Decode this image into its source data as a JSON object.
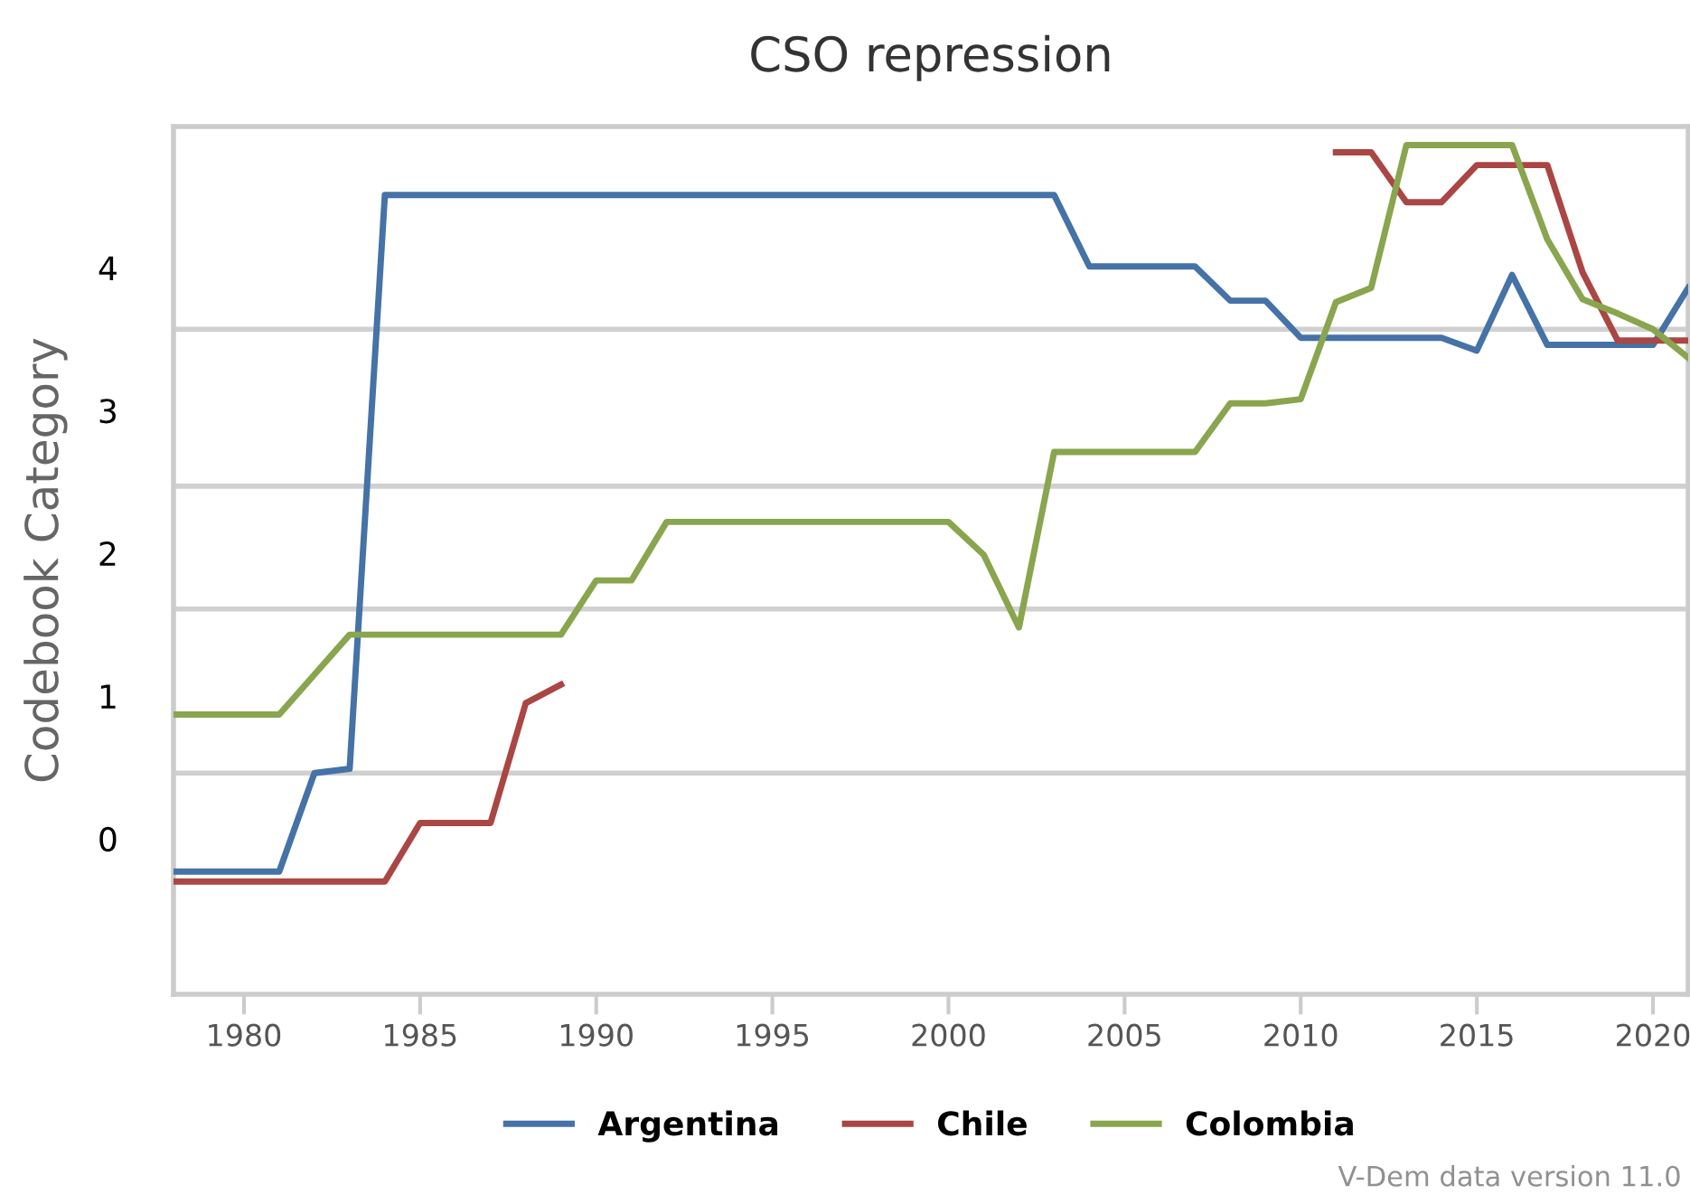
{
  "chart_data": {
    "type": "line",
    "title": "CSO repression",
    "ylabel": "Codebook Category",
    "x": [
      1978,
      1979,
      1980,
      1981,
      1982,
      1983,
      1984,
      1985,
      1986,
      1987,
      1988,
      1989,
      1990,
      1991,
      1992,
      1993,
      1994,
      1995,
      1996,
      1997,
      1998,
      1999,
      2000,
      2001,
      2002,
      2003,
      2004,
      2005,
      2006,
      2007,
      2008,
      2009,
      2010,
      2011,
      2012,
      2013,
      2014,
      2015,
      2016,
      2017,
      2018,
      2019,
      2020,
      2021
    ],
    "series": [
      {
        "name": "Argentina",
        "color": "#4572a7",
        "values": [
          -0.23,
          -0.23,
          -0.23,
          -0.23,
          0.46,
          0.49,
          4.51,
          4.51,
          4.51,
          4.51,
          4.51,
          4.51,
          4.51,
          4.51,
          4.51,
          4.51,
          4.51,
          4.51,
          4.51,
          4.51,
          4.51,
          4.51,
          4.51,
          4.51,
          4.51,
          4.51,
          4.01,
          4.01,
          4.01,
          4.01,
          3.77,
          3.77,
          3.51,
          3.51,
          3.51,
          3.51,
          3.51,
          3.42,
          3.95,
          3.46,
          3.46,
          3.46,
          3.46,
          3.86
        ]
      },
      {
        "name": "Chile",
        "color": "#aa4643",
        "values": [
          -0.3,
          -0.3,
          -0.3,
          -0.3,
          -0.3,
          -0.3,
          -0.3,
          0.11,
          0.11,
          0.11,
          0.95,
          1.08,
          null,
          null,
          null,
          null,
          null,
          null,
          null,
          null,
          null,
          null,
          null,
          null,
          null,
          null,
          null,
          null,
          null,
          null,
          null,
          null,
          null,
          4.81,
          4.81,
          4.46,
          4.46,
          4.72,
          4.72,
          4.72,
          3.97,
          3.49,
          3.49,
          3.49
        ]
      },
      {
        "name": "Colombia",
        "color": "#89a54e",
        "values": [
          0.87,
          0.87,
          0.87,
          0.87,
          1.15,
          1.43,
          1.43,
          1.43,
          1.43,
          1.43,
          1.43,
          1.43,
          1.81,
          1.81,
          2.22,
          2.22,
          2.22,
          2.22,
          2.22,
          2.22,
          2.22,
          2.22,
          2.22,
          1.99,
          1.48,
          2.71,
          2.71,
          2.71,
          2.71,
          2.71,
          3.05,
          3.05,
          3.08,
          3.76,
          3.86,
          4.86,
          4.86,
          4.86,
          4.86,
          4.2,
          3.78,
          3.68,
          3.57,
          3.37
        ]
      }
    ],
    "xlim": [
      1978,
      2021
    ],
    "xticks": [
      1980,
      1985,
      1990,
      1995,
      2000,
      2005,
      2010,
      2015,
      2020
    ],
    "ylim": [
      -1.09,
      4.99
    ],
    "yticks": [
      0,
      1,
      2,
      3,
      4
    ],
    "ref_lines": [
      {
        "axis": "y",
        "value": 3.57,
        "color": "#d0d0d0"
      },
      {
        "axis": "y",
        "value": 2.47,
        "color": "#d0d0d0"
      },
      {
        "axis": "y",
        "value": 1.61,
        "color": "#d0d0d0"
      },
      {
        "axis": "y",
        "value": 0.46,
        "color": "#d0d0d0"
      }
    ],
    "grid": false,
    "legend": "bottom",
    "marker": "none",
    "line_style": "solid",
    "annotations": [
      "V-Dem data version 11.0"
    ]
  }
}
